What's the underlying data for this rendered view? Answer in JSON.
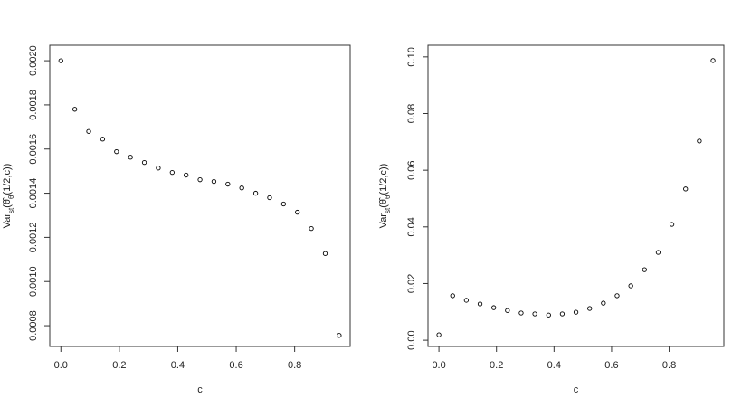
{
  "chart_data": [
    {
      "type": "scatter",
      "xlabel": "c",
      "ylabel": [
        {
          "text": "Var"
        },
        {
          "text": "st",
          "sub": true
        },
        {
          "text": "("
        },
        {
          "text": "θ̂"
        },
        {
          "text": "θ",
          "sub": true
        },
        {
          "text": "(1/2,c))"
        }
      ],
      "x": [
        0,
        0.0476,
        0.0952,
        0.1429,
        0.1905,
        0.2381,
        0.2857,
        0.3333,
        0.381,
        0.4286,
        0.4762,
        0.5238,
        0.5714,
        0.619,
        0.6667,
        0.7143,
        0.7619,
        0.8095,
        0.8571,
        0.9048,
        0.9524
      ],
      "values": [
        0.002,
        0.00178,
        0.00168,
        0.001645,
        0.001588,
        0.001563,
        0.001539,
        0.001514,
        0.001494,
        0.001482,
        0.001461,
        0.001453,
        0.001441,
        0.001424,
        0.0014,
        0.00138,
        0.001351,
        0.001314,
        0.00124,
        0.001127,
        0.000756
      ],
      "color": "#000000",
      "xlim": [
        -0.038,
        0.99
      ],
      "ylim": [
        0.000706,
        0.00207
      ],
      "xticks": [
        {
          "value": 0,
          "label": "0.0"
        },
        {
          "value": 0.2,
          "label": "0.2"
        },
        {
          "value": 0.4,
          "label": "0.4"
        },
        {
          "value": 0.6,
          "label": "0.6"
        },
        {
          "value": 0.8,
          "label": "0.8"
        }
      ],
      "yticks": [
        {
          "value": 0.0008,
          "label": "0.0008"
        },
        {
          "value": 0.001,
          "label": "0.0010"
        },
        {
          "value": 0.0012,
          "label": "0.0012"
        },
        {
          "value": 0.0014,
          "label": "0.0014"
        },
        {
          "value": 0.0016,
          "label": "0.0016"
        },
        {
          "value": 0.0018,
          "label": "0.0018"
        },
        {
          "value": 0.002,
          "label": "0.0020"
        }
      ]
    },
    {
      "type": "scatter",
      "xlabel": "c",
      "ylabel": [
        {
          "text": "Var"
        },
        {
          "text": "st",
          "sub": true
        },
        {
          "text": "("
        },
        {
          "text": "θ̂"
        },
        {
          "text": "θ",
          "sub": true
        },
        {
          "text": "(1/2,c))"
        }
      ],
      "x": [
        0,
        0.0476,
        0.0952,
        0.1429,
        0.1905,
        0.2381,
        0.2857,
        0.3333,
        0.381,
        0.4286,
        0.4762,
        0.5238,
        0.5714,
        0.619,
        0.6667,
        0.7143,
        0.7619,
        0.8095,
        0.8571,
        0.9048,
        0.9524
      ],
      "values": [
        0.0019,
        0.0157,
        0.0141,
        0.0128,
        0.0115,
        0.0105,
        0.0096,
        0.0093,
        0.0089,
        0.0093,
        0.0099,
        0.0112,
        0.0131,
        0.0157,
        0.0192,
        0.0249,
        0.031,
        0.0409,
        0.0534,
        0.0703,
        0.0987
      ],
      "color": "#000000",
      "xlim": [
        -0.038,
        0.99
      ],
      "ylim": [
        -0.0022,
        0.1041
      ],
      "xticks": [
        {
          "value": 0,
          "label": "0.0"
        },
        {
          "value": 0.2,
          "label": "0.2"
        },
        {
          "value": 0.4,
          "label": "0.4"
        },
        {
          "value": 0.6,
          "label": "0.6"
        },
        {
          "value": 0.8,
          "label": "0.8"
        }
      ],
      "yticks": [
        {
          "value": 0,
          "label": "0.00"
        },
        {
          "value": 0.02,
          "label": "0.02"
        },
        {
          "value": 0.04,
          "label": "0.04"
        },
        {
          "value": 0.06,
          "label": "0.06"
        },
        {
          "value": 0.08,
          "label": "0.08"
        },
        {
          "value": 0.1,
          "label": "0.10"
        }
      ]
    }
  ]
}
